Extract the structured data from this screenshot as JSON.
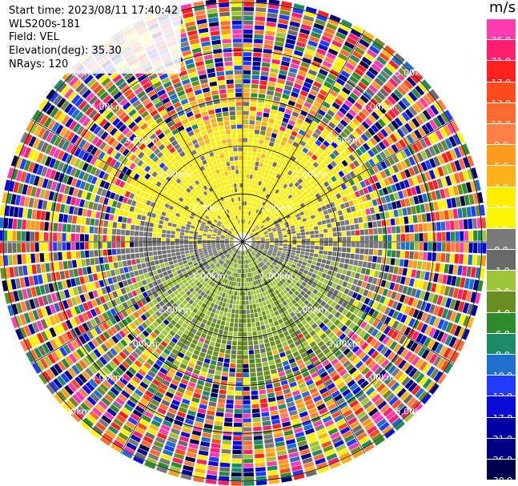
{
  "header": {
    "start_time": "Start time: 2023/08/11 17:40:42",
    "device": "WLS200s-181",
    "field": "Field: VEL",
    "elevation": "Elevation(deg): 35.30",
    "nrays": "NRays: 120"
  },
  "colorbar": {
    "unit": "m/s",
    "bins": [
      {
        "color": "#ff3bb0",
        "label": "26.0"
      },
      {
        "color": "#ff1f6e",
        "label": "21.0"
      },
      {
        "color": "#ff1f1f",
        "label": "17.0"
      },
      {
        "color": "#ff4a1a",
        "label": "13.0"
      },
      {
        "color": "#ff6a2e",
        "label": "10.0"
      },
      {
        "color": "#ff7f45",
        "label": "8.0"
      },
      {
        "color": "#ff9a1a",
        "label": "6.0"
      },
      {
        "color": "#ffb31a",
        "label": "4.0"
      },
      {
        "color": "#ffee00",
        "label": "2.0"
      },
      {
        "color": "#fff500",
        "label": "1.0"
      },
      {
        "color": "#7a7a7a",
        "label": "0.0"
      },
      {
        "color": "#6a6a6a",
        "label": "-1.0"
      },
      {
        "color": "#9ec43a",
        "label": "-2.0"
      },
      {
        "color": "#6b8e23",
        "label": "-4.0"
      },
      {
        "color": "#2e8b2e",
        "label": "-6.0"
      },
      {
        "color": "#1e8a6a",
        "label": "-8.0"
      },
      {
        "color": "#1f6fd0",
        "label": "-10.0"
      },
      {
        "color": "#1f3cff",
        "label": "-13.0"
      },
      {
        "color": "#0a0ad8",
        "label": "-17.0"
      },
      {
        "color": "#0000a0",
        "label": "-21.0"
      },
      {
        "color": "#000080",
        "label": "-26.0"
      },
      {
        "color": "#00004a",
        "label": "-30.0"
      }
    ]
  },
  "chart_data": {
    "type": "heatmap",
    "projection": "polar PPI",
    "field": "VEL",
    "units": "m/s",
    "elevation_deg": 35.3,
    "n_rays": 120,
    "range_rings_km": [
      1.0,
      2.0,
      3.0,
      4.0,
      5.0
    ],
    "range_labels": [
      "1.00km",
      "2.00km",
      "3.00km",
      "4.00km",
      "5.00km"
    ],
    "azimuth_spokes_deg": [
      0,
      30,
      60,
      90,
      120,
      150,
      180,
      210,
      240,
      270,
      300,
      330
    ],
    "pattern": "positive velocities (yellow/orange, ~2 to 6 m/s) over the northern half near center, gray near-zero band across the middle, negative velocities (green, ~-2 to -6 m/s) over the southern half near center, random mixed colors (noise) at far ranges"
  }
}
